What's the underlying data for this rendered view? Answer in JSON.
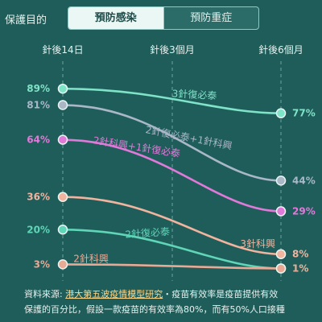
{
  "header": {
    "protect_label": "保護目的",
    "tabs": [
      {
        "label": "預防感染",
        "active": true
      },
      {
        "label": "預防重症",
        "active": false
      }
    ]
  },
  "chart_data": {
    "type": "line",
    "x_labels": [
      "針後14日",
      "針後3個月",
      "針後6個月"
    ],
    "y_range": [
      0,
      95
    ],
    "series": [
      {
        "name": "3針復必泰",
        "color": "#7fe3c8",
        "start": 89,
        "end": 77,
        "start_label": "89%",
        "end_label": "77%"
      },
      {
        "name": "2針復必泰+1針科興",
        "color": "#a9b7c7",
        "start": 81,
        "end": 44,
        "start_label": "81%",
        "end_label": "44%"
      },
      {
        "name": "2針科興+1針復必泰",
        "color": "#e07ad8",
        "start": 64,
        "end": 29,
        "start_label": "64%",
        "end_label": "29%"
      },
      {
        "name": "3針科興",
        "color": "#f0b49f",
        "start": 36,
        "end": 8,
        "start_label": "36%",
        "end_label": "8%"
      },
      {
        "name": "2針復必泰",
        "color": "#5fd6b8",
        "start": 20,
        "end": 1,
        "start_label": "20%",
        "end_label": "1%"
      },
      {
        "name": "2針科興",
        "color": "#e8a995",
        "start": 3,
        "end": 1,
        "start_label": "3%",
        "end_label": "1%"
      }
    ]
  },
  "footer": {
    "prefix": "資料來源: ",
    "source": "港大第五波疫情模型研究",
    "line1_rest": "・疫苗有效率是疫苗提供有效",
    "line2": "保護的百分比，假設一款疫苗的有效率為80%，而有50%人口接種"
  }
}
